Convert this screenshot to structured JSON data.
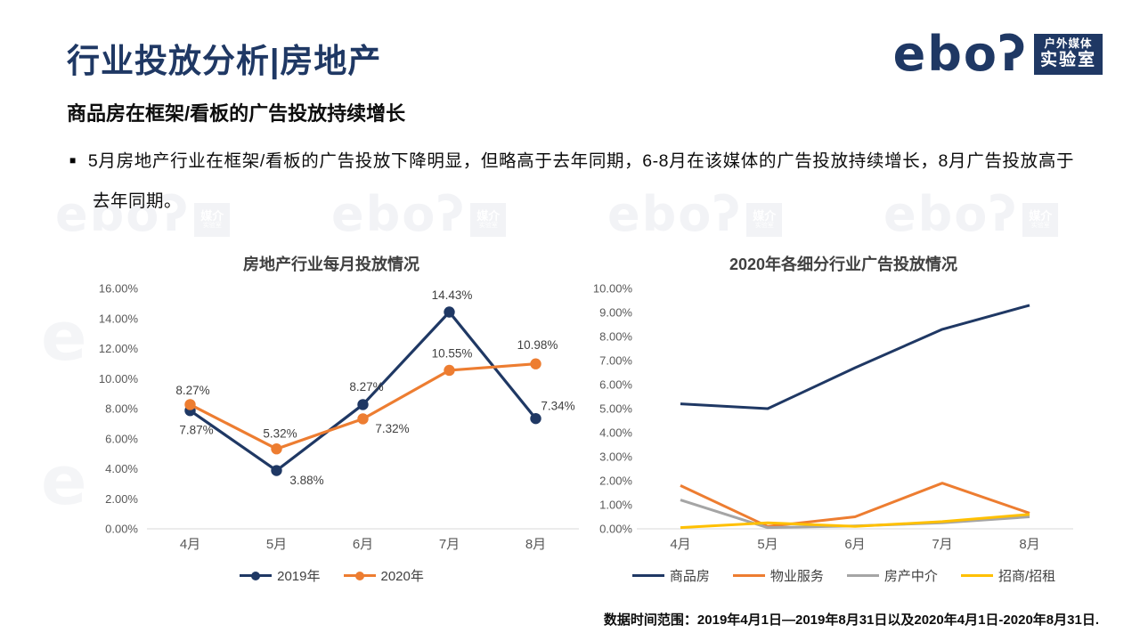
{
  "header": {
    "title": "行业投放分析|房地产",
    "subtitle": "商品房在框架/看板的广告投放持续增长",
    "bullet_marker": "■",
    "bullet": "5月房地产行业在框架/看板的广告投放下降明显，但略高于去年同期，6-8月在该媒体的广告投放持续增长，8月广告投放高于去年同期。"
  },
  "logo": {
    "wordmark": "ebo",
    "r_glyph": "ʔ",
    "tag_line1": "户外媒体",
    "tag_line2": "实验室",
    "color": "#1f3864"
  },
  "watermark": {
    "text": "eboʔ",
    "badge_top": "媒介",
    "badge_bottom": "实验室"
  },
  "footer": {
    "text": "数据时间范围：2019年4月1日—2019年8月31日以及2020年4月1日-2020年8月31日."
  },
  "colors": {
    "navy": "#1f3864",
    "orange": "#ed7d31",
    "gray": "#a5a5a5",
    "yellow": "#ffc000",
    "axis_text": "#595959",
    "label_text": "#404040",
    "axis_line": "#d9d9d9"
  },
  "chart_data": [
    {
      "type": "line",
      "title": "房地产行业每月投放情况",
      "categories": [
        "4月",
        "5月",
        "6月",
        "7月",
        "8月"
      ],
      "xlabel": "",
      "ylabel": "",
      "ylim": [
        0,
        16
      ],
      "ytick_step": 2,
      "grid": false,
      "legend_position": "bottom",
      "series": [
        {
          "name": "2019年",
          "color": "#1f3864",
          "markers": true,
          "data_labels": true,
          "values": [
            7.87,
            3.88,
            8.27,
            14.43,
            7.34
          ],
          "label_offsets": [
            [
              7,
              22
            ],
            [
              34,
              11
            ],
            [
              4,
              -20
            ],
            [
              3,
              -19
            ],
            [
              25,
              -14
            ]
          ]
        },
        {
          "name": "2020年",
          "color": "#ed7d31",
          "markers": true,
          "data_labels": true,
          "values": [
            8.27,
            5.32,
            7.32,
            10.55,
            10.98
          ],
          "label_offsets": [
            [
              3,
              -16
            ],
            [
              4,
              -17
            ],
            [
              33,
              11
            ],
            [
              3,
              -19
            ],
            [
              2,
              -21
            ]
          ]
        }
      ]
    },
    {
      "type": "line",
      "title": "2020年各细分行业广告投放情况",
      "categories": [
        "4月",
        "5月",
        "6月",
        "7月",
        "8月"
      ],
      "xlabel": "",
      "ylabel": "",
      "ylim": [
        0,
        10
      ],
      "ytick_step": 1,
      "grid": false,
      "legend_position": "bottom",
      "series": [
        {
          "name": "商品房",
          "color": "#1f3864",
          "markers": false,
          "data_labels": false,
          "values": [
            5.2,
            5.0,
            6.7,
            8.3,
            9.3
          ]
        },
        {
          "name": "物业服务",
          "color": "#ed7d31",
          "markers": false,
          "data_labels": false,
          "values": [
            1.8,
            0.1,
            0.5,
            1.9,
            0.65
          ]
        },
        {
          "name": "房产中介",
          "color": "#a5a5a5",
          "markers": false,
          "data_labels": false,
          "values": [
            1.2,
            0.05,
            0.12,
            0.25,
            0.5
          ]
        },
        {
          "name": "招商/招租",
          "color": "#ffc000",
          "markers": false,
          "data_labels": false,
          "values": [
            0.05,
            0.25,
            0.1,
            0.3,
            0.6
          ]
        }
      ]
    }
  ]
}
